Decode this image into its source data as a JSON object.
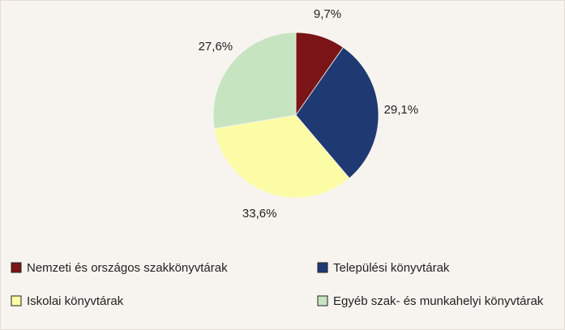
{
  "chart_data": {
    "type": "pie",
    "categories": [
      "Nemzeti és országos szakkönyvtárak",
      "Települési könyvtárak",
      "Iskolai könyvtárak",
      "Egyéb szak- és munkahelyi könyvtárak"
    ],
    "values": [
      9.7,
      29.1,
      33.6,
      27.6
    ],
    "value_labels": [
      "9,7%",
      "29,1%",
      "33,6%",
      "27,6%"
    ],
    "colors": [
      "#7b1416",
      "#1f3a72",
      "#fdfca6",
      "#c7e4c1"
    ]
  }
}
